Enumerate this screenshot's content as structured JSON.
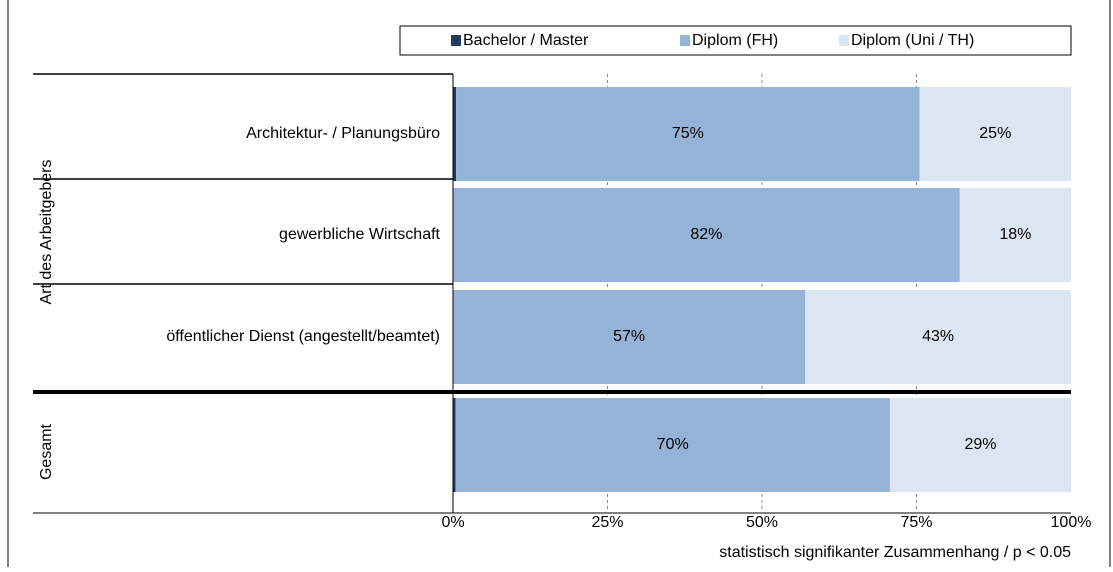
{
  "chart_data": {
    "type": "stacked-barh",
    "categories": [
      "Architektur- / Planungsbüro",
      "gewerbliche Wirtschaft",
      "öffentlicher Dienst (angestellt/beamtet)",
      null
    ],
    "groups": [
      "Art des Arbeitgebers",
      "Gesamt"
    ],
    "series": [
      {
        "name": "Bachelor / Master",
        "color": "#1f3b5c",
        "values": [
          0.5,
          0,
          0,
          0.4
        ]
      },
      {
        "name": "Diplom (FH)",
        "color": "#95b3d7",
        "values": [
          75,
          82,
          57,
          70.3
        ],
        "value_labels": [
          "75%",
          "82%",
          "57%",
          "70%"
        ]
      },
      {
        "name": "Diplom (Uni / TH)",
        "color": "#dce6f2",
        "values": [
          24.5,
          18,
          43,
          29.3
        ],
        "value_labels": [
          "25%",
          "18%",
          "43%",
          "29%"
        ]
      }
    ],
    "xlim": [
      0,
      100
    ],
    "xticks": [
      {
        "value": 0,
        "label": "0%"
      },
      {
        "value": 25,
        "label": "25%"
      },
      {
        "value": 50,
        "label": "50%"
      },
      {
        "value": 75,
        "label": "75%"
      },
      {
        "value": 100,
        "label": "100%"
      }
    ],
    "grid": true,
    "note": "statistisch signifikanter Zusammenhang / p < 0.05"
  }
}
